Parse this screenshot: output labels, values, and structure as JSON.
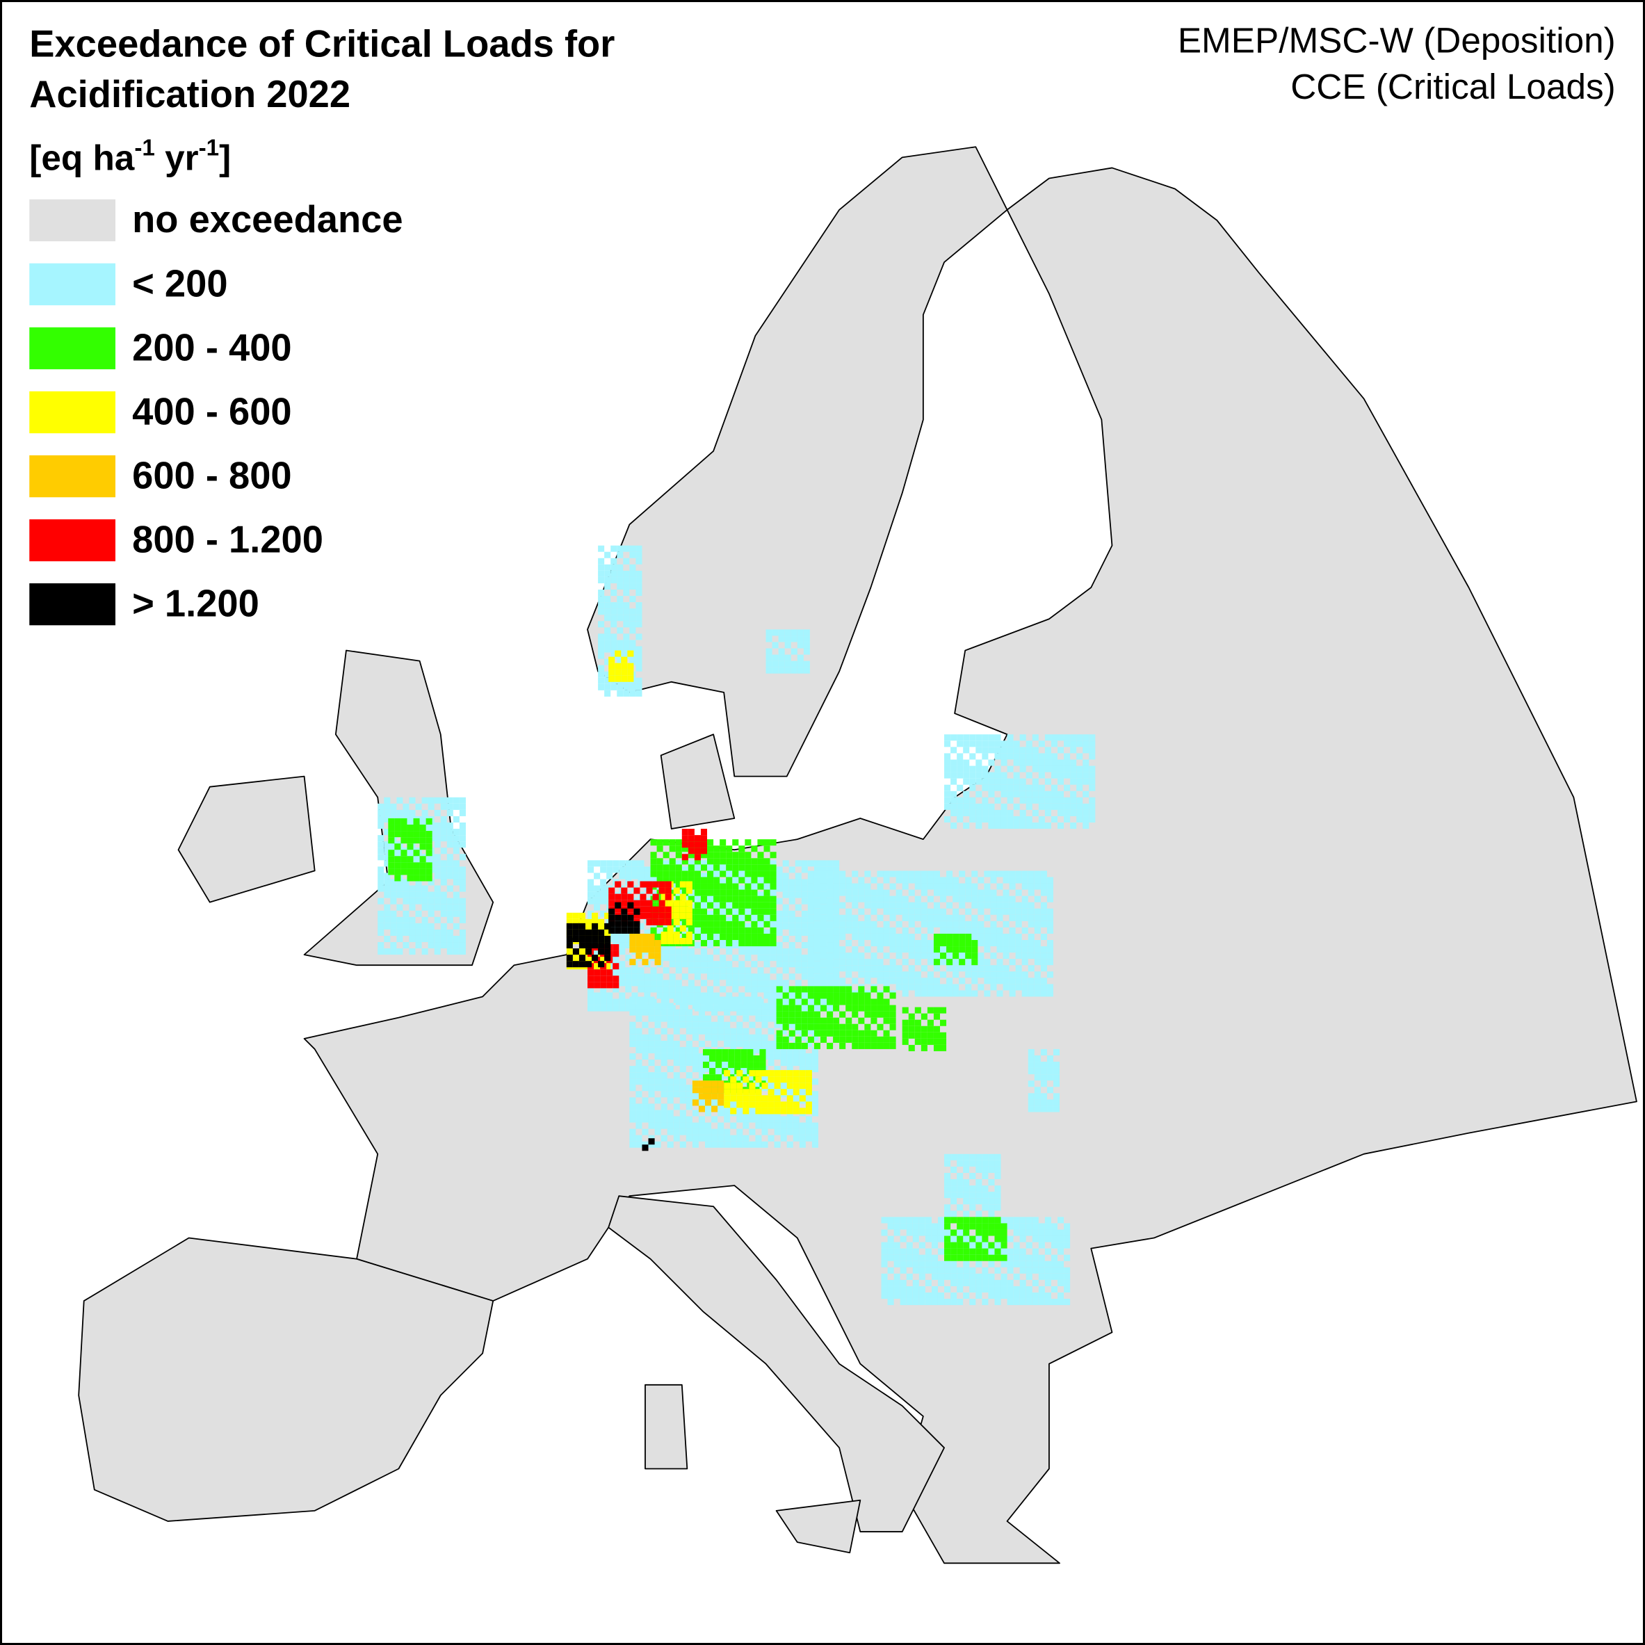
{
  "title": [
    "Exceedance of Critical Loads for",
    "Acidification 2022"
  ],
  "unit": [
    "[eq ha",
    "-1",
    " yr",
    "-1",
    "]"
  ],
  "legend": [
    {
      "label": "no exceedance",
      "color": "#e0e0e0"
    },
    {
      "label": "< 200",
      "color": "#a6f5ff"
    },
    {
      "label": "200 - 400",
      "color": "#33ff00"
    },
    {
      "label": "400 - 600",
      "color": "#ffff00"
    },
    {
      "label": "600 - 800",
      "color": "#ffcc00"
    },
    {
      "label": "800 - 1.200",
      "color": "#ff0000"
    },
    {
      "label": "> 1.200",
      "color": "#000000"
    }
  ],
  "source": [
    "EMEP/MSC-W (Deposition)",
    "CCE (Critical Loads)"
  ]
}
